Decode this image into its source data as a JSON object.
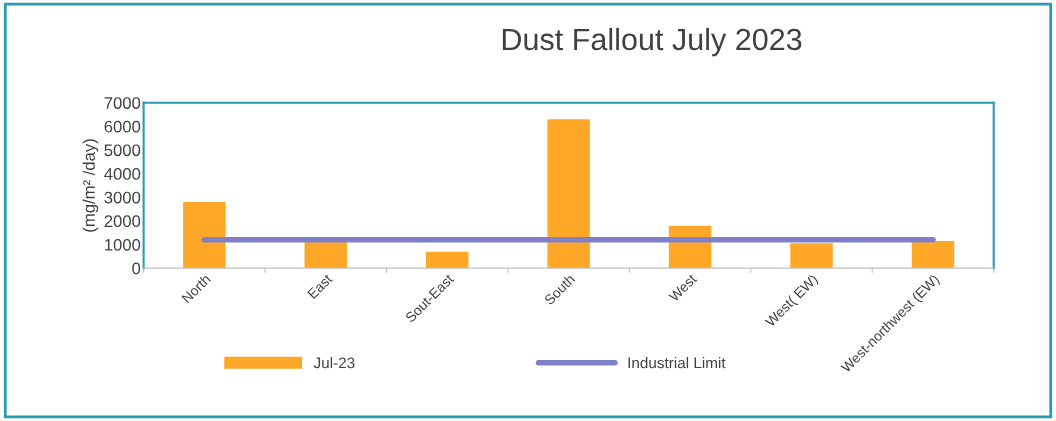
{
  "chart_data": {
    "type": "bar",
    "title": "Dust Fallout July 2023",
    "ylabel": "(mg/m² /day)",
    "categories": [
      "North",
      "East",
      "Sout-East",
      "South",
      "West",
      "West( EW)",
      "West-northwest (EW)"
    ],
    "series": [
      {
        "name": "Jul-23",
        "color": "#ffa726",
        "values": [
          2800,
          1150,
          700,
          6300,
          1800,
          1050,
          1150
        ]
      },
      {
        "name": "Industrial Limit",
        "type": "line",
        "color": "#8080c8",
        "values": [
          1200,
          1200,
          1200,
          1200,
          1200,
          1200,
          1200
        ]
      }
    ],
    "ylim": [
      0,
      7000
    ],
    "yticks": [
      0,
      1000,
      2000,
      3000,
      4000,
      5000,
      6000,
      7000
    ],
    "grid": false,
    "legend": "bottom"
  }
}
